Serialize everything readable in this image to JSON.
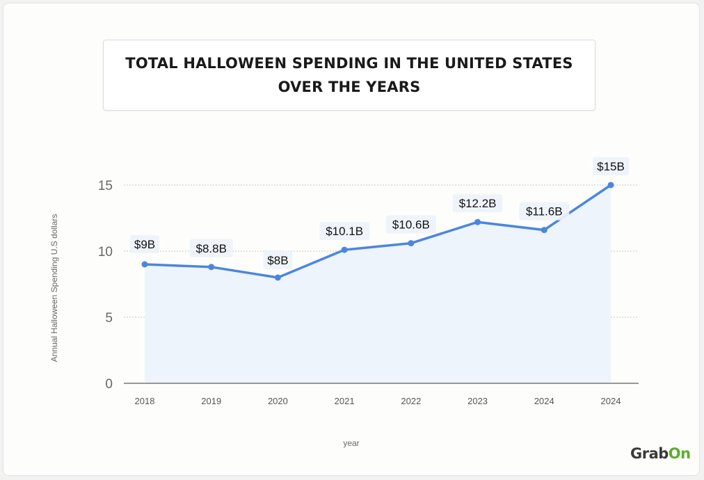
{
  "chart_data": {
    "type": "line",
    "title": "TOTAL HALLOWEEN SPENDING IN THE UNITED STATES OVER THE YEARS",
    "xlabel": "year",
    "ylabel": "Annual Halloween Spending U.S dollars",
    "categories": [
      "2018",
      "2019",
      "2020",
      "2021",
      "2022",
      "2023",
      "2024",
      "2024"
    ],
    "values": [
      9,
      8.8,
      8,
      10.1,
      10.6,
      12.2,
      11.6,
      15
    ],
    "data_labels": [
      "$9B",
      "$8.8B",
      "$8B",
      "$10.1B",
      "$10.6B",
      "$12.2B",
      "$11.6B",
      "$15B"
    ],
    "yticks": [
      0,
      5,
      10,
      15
    ],
    "ylim": [
      0,
      15
    ],
    "grid": "horizontal dotted",
    "line_color": "#4a86e0",
    "area_color": "#eef4fc"
  },
  "brand": {
    "logo_part1": "Grab",
    "logo_part2": "On",
    "logo_color1": "#3a3a3a",
    "logo_color2": "#5cae2f"
  }
}
